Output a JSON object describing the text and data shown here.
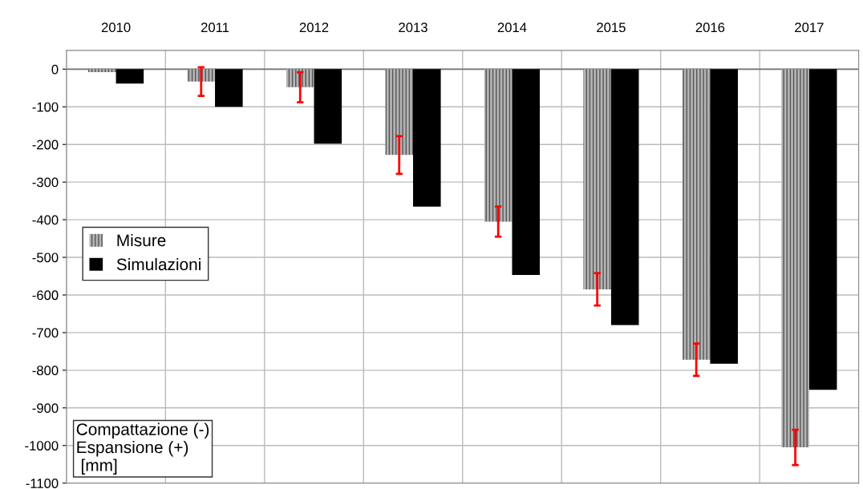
{
  "chart_data": {
    "type": "bar",
    "categories": [
      "2010",
      "2011",
      "2012",
      "2013",
      "2014",
      "2015",
      "2016",
      "2017"
    ],
    "series": [
      {
        "name": "Misure",
        "color": "#b4b4b4",
        "values": [
          -8,
          -33,
          -48,
          -228,
          -405,
          -585,
          -772,
          -1005
        ],
        "errors": [
          null,
          38,
          40,
          50,
          40,
          43,
          43,
          47
        ]
      },
      {
        "name": "Simulazioni",
        "color": "#000000",
        "values": [
          -38,
          -100,
          -198,
          -365,
          -547,
          -680,
          -783,
          -852
        ]
      }
    ],
    "ylim": [
      -1100,
      50
    ],
    "yticks": [
      -1100,
      -1000,
      -900,
      -800,
      -700,
      -600,
      -500,
      -400,
      -300,
      -200,
      -100,
      0
    ],
    "grid": true,
    "legend": "left",
    "annotations": [
      "Compattazione (-)\nEspansione (+)\n [mm]"
    ]
  }
}
